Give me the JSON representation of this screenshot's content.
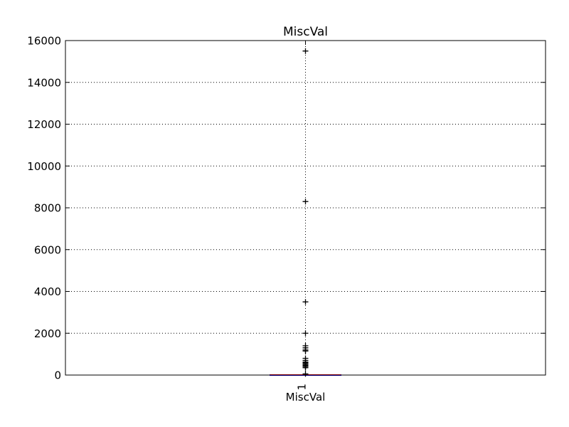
{
  "chart_data": {
    "type": "box",
    "title": "MiscVal",
    "xlabel": "MiscVal",
    "ylabel": "",
    "categories": [
      "1"
    ],
    "ylim": [
      0,
      16000
    ],
    "yticks": [
      0,
      2000,
      4000,
      6000,
      8000,
      10000,
      12000,
      14000,
      16000
    ],
    "grid": true,
    "box": {
      "q1": 0,
      "median": 0,
      "q3": 0,
      "whisker_low": 0,
      "whisker_high": 0
    },
    "outliers": [
      54,
      350,
      400,
      450,
      480,
      500,
      560,
      600,
      620,
      700,
      800,
      1150,
      1200,
      1300,
      1400,
      2000,
      3500,
      8300,
      15500
    ],
    "colors": {
      "box": "#0000ff",
      "median": "#ff0000",
      "outlier": "#000000",
      "grid": "#000000"
    }
  }
}
